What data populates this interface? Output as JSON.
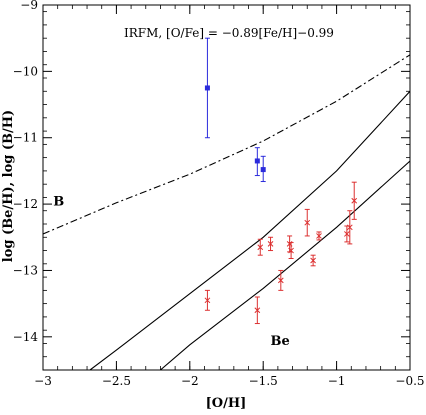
{
  "chart_data": {
    "type": "scatter",
    "xlabel": "[O/H]",
    "ylabel": "log (Be/H),  log (B/H)",
    "xlim": [
      -3,
      -0.5
    ],
    "ylim": [
      -14.5,
      -9
    ],
    "xticks": [
      -3,
      -2.5,
      -2,
      -1.5,
      -1,
      -0.5
    ],
    "xtick_labels": [
      "−3",
      "−2.5",
      "−2",
      "−1.5",
      "−1",
      "−0.5"
    ],
    "yticks": [
      -14,
      -13,
      -12,
      -11,
      -10,
      -9
    ],
    "ytick_labels": [
      "−14",
      "−13",
      "−12",
      "−11",
      "−10",
      "−9"
    ],
    "grid": false,
    "legend": "none",
    "annotation": "IRFM,  [O/Fe]  =  −0.89[Fe/H]−0.99",
    "colors": {
      "boron_points": "#2b2bdc",
      "beryllium_points": "#dc3030",
      "axes": "#000000"
    },
    "curves": [
      {
        "label": "B",
        "style": "dashdot",
        "x": [
          -3.0,
          -2.5,
          -2.0,
          -1.5,
          -1.0,
          -0.5
        ],
        "y": [
          -12.45,
          -11.98,
          -11.55,
          -11.05,
          -10.45,
          -9.75
        ]
      },
      {
        "label": "",
        "style": "solid",
        "x": [
          -2.68,
          -2.5,
          -2.0,
          -1.5,
          -1.0,
          -0.5
        ],
        "y": [
          -14.5,
          -14.2,
          -13.35,
          -12.5,
          -11.5,
          -10.3
        ]
      },
      {
        "label": "Be",
        "style": "solid",
        "x": [
          -2.2,
          -2.0,
          -1.5,
          -1.0,
          -0.5
        ],
        "y": [
          -14.5,
          -14.12,
          -13.27,
          -12.35,
          -11.35
        ]
      }
    ],
    "curve_labels": [
      {
        "text": "B",
        "x": -2.93,
        "y": -12.02
      },
      {
        "text": "Be",
        "x": -1.45,
        "y": -14.12
      }
    ],
    "series": [
      {
        "marker": "square",
        "points": [
          {
            "x": -1.88,
            "y": -10.25,
            "yerr_low": 0.75,
            "yerr_high": 0.75
          },
          {
            "x": -1.54,
            "y": -11.35,
            "yerr_low": 0.22,
            "yerr_high": 0.2
          },
          {
            "x": -1.5,
            "y": -11.48,
            "yerr_low": 0.18,
            "yerr_high": 0.2
          }
        ]
      },
      {
        "marker": "cross",
        "points": [
          {
            "x": -1.88,
            "y": -13.45,
            "yerr_low": 0.15,
            "yerr_high": 0.15
          },
          {
            "x": -1.54,
            "y": -13.6,
            "yerr_low": 0.2,
            "yerr_high": 0.2
          },
          {
            "x": -1.52,
            "y": -12.65,
            "yerr_low": 0.12,
            "yerr_high": 0.12
          },
          {
            "x": -1.45,
            "y": -12.6,
            "yerr_low": 0.1,
            "yerr_high": 0.1
          },
          {
            "x": -1.38,
            "y": -13.15,
            "yerr_low": 0.15,
            "yerr_high": 0.15
          },
          {
            "x": -1.32,
            "y": -12.6,
            "yerr_low": 0.12,
            "yerr_high": 0.12
          },
          {
            "x": -1.31,
            "y": -12.7,
            "yerr_low": 0.12,
            "yerr_high": 0.12
          },
          {
            "x": -1.2,
            "y": -12.28,
            "yerr_low": 0.2,
            "yerr_high": 0.2
          },
          {
            "x": -1.16,
            "y": -12.85,
            "yerr_low": 0.08,
            "yerr_high": 0.08
          },
          {
            "x": -1.12,
            "y": -12.48,
            "yerr_low": 0.06,
            "yerr_high": 0.06
          },
          {
            "x": -0.93,
            "y": -12.45,
            "yerr_low": 0.12,
            "yerr_high": 0.12
          },
          {
            "x": -0.91,
            "y": -12.35,
            "yerr_low": 0.25,
            "yerr_high": 0.25
          },
          {
            "x": -0.88,
            "y": -11.95,
            "yerr_low": 0.28,
            "yerr_high": 0.28
          }
        ]
      }
    ]
  }
}
